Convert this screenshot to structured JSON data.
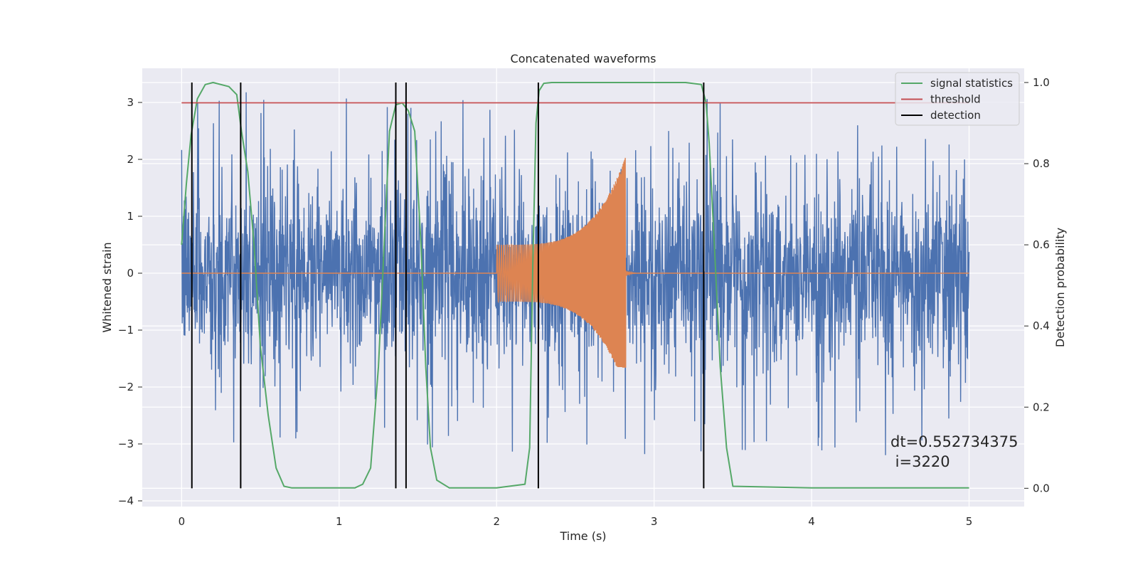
{
  "chart_data": {
    "type": "line",
    "title": "Concatenated waveforms",
    "xlabel": "Time (s)",
    "ylabel": "Whitened strain",
    "y2label": "Detection probability",
    "xlim": [
      -0.25,
      5.35
    ],
    "ylim": [
      -4.1,
      3.6
    ],
    "y2lim": [
      -0.045,
      1.035
    ],
    "x_ticks": [
      "0",
      "1",
      "2",
      "3",
      "4",
      "5"
    ],
    "x_tick_values": [
      0,
      1,
      2,
      3,
      4,
      5
    ],
    "y_ticks": [
      "−4",
      "−3",
      "−2",
      "−1",
      "0",
      "1",
      "2",
      "3"
    ],
    "y_tick_values": [
      -4,
      -3,
      -2,
      -1,
      0,
      1,
      2,
      3
    ],
    "y2_ticks": [
      "0.0",
      "0.2",
      "0.4",
      "0.6",
      "0.8",
      "1.0"
    ],
    "y2_tick_values": [
      0,
      0.2,
      0.4,
      0.6,
      0.8,
      1.0
    ],
    "grid": true,
    "legend": {
      "placement": "upper-right",
      "entries": [
        {
          "label": "signal statistics",
          "color": "#55a868"
        },
        {
          "label": "threshold",
          "color": "#c44e52"
        },
        {
          "label": "detection",
          "color": "#000000"
        }
      ]
    },
    "series": [
      {
        "role": "whitened-strain-noise",
        "color": "#4c72b0",
        "x_range": [
          0,
          5
        ],
        "typical_amplitude": 1.0,
        "max_peak": 3.4,
        "min_trough": -3.6,
        "axis": "left"
      },
      {
        "role": "injected-waveform",
        "color": "#dd8452",
        "x_range": [
          0,
          5
        ],
        "x_start": 2.0,
        "x_merger": 2.82,
        "start_amplitude": 0.5,
        "peak_amplitude": 2.05,
        "min_value": -1.65,
        "axis": "left"
      },
      {
        "name": "signal statistics",
        "color": "#55a868",
        "axis": "right",
        "x": [
          0.0,
          0.03,
          0.06,
          0.1,
          0.15,
          0.2,
          0.3,
          0.35,
          0.38,
          0.42,
          0.46,
          0.5,
          0.55,
          0.6,
          0.65,
          0.7,
          0.9,
          1.1,
          1.15,
          1.2,
          1.25,
          1.28,
          1.32,
          1.36,
          1.4,
          1.44,
          1.48,
          1.52,
          1.55,
          1.58,
          1.62,
          1.7,
          2.0,
          2.18,
          2.21,
          2.23,
          2.25,
          2.27,
          2.3,
          2.35,
          3.2,
          3.3,
          3.33,
          3.35,
          3.38,
          3.42,
          3.46,
          3.5,
          4.0,
          5.0
        ],
        "values": [
          0.6,
          0.75,
          0.87,
          0.96,
          0.995,
          1.0,
          0.99,
          0.97,
          0.88,
          0.78,
          0.6,
          0.35,
          0.18,
          0.05,
          0.005,
          0.001,
          0.001,
          0.001,
          0.01,
          0.05,
          0.3,
          0.55,
          0.88,
          0.945,
          0.95,
          0.93,
          0.88,
          0.6,
          0.3,
          0.1,
          0.02,
          0.001,
          0.001,
          0.01,
          0.1,
          0.55,
          0.9,
          0.98,
          0.998,
          1.0,
          1.0,
          0.995,
          0.95,
          0.85,
          0.62,
          0.3,
          0.1,
          0.005,
          0.001,
          0.001
        ]
      },
      {
        "name": "threshold",
        "color": "#c44e52",
        "axis": "right",
        "x": [
          0,
          5
        ],
        "values": [
          0.95,
          0.95
        ]
      },
      {
        "name": "detection",
        "color": "#000000",
        "axis": "right",
        "type": "vlines",
        "x": [
          0.065,
          0.375,
          1.36,
          1.425,
          2.265,
          3.315
        ],
        "ymin": 0.0,
        "ymax": 1.0
      }
    ],
    "annotations": [
      {
        "line1": "dt=0.552734375",
        "line2": " i=3220"
      }
    ]
  }
}
